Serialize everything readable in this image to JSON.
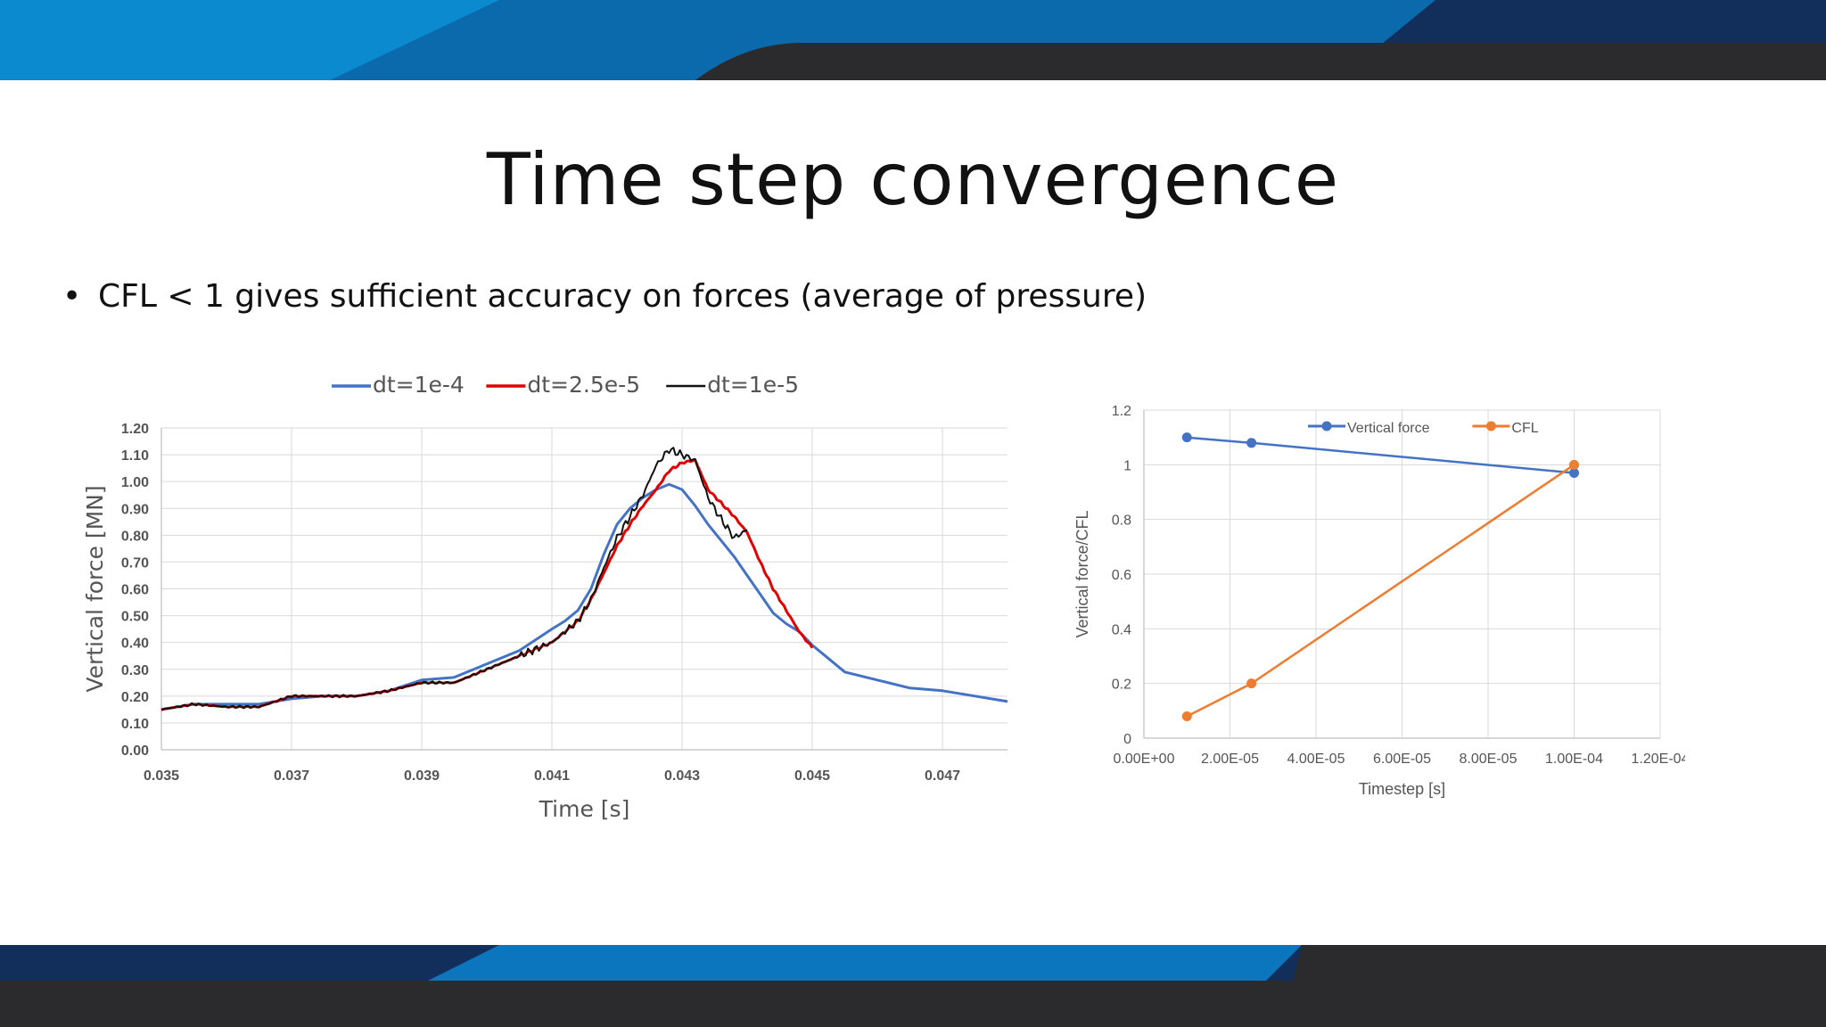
{
  "slide": {
    "title": "Time step convergence",
    "bullet": "CFL < 1 gives sufficient accuracy on forces (average of pressure)"
  },
  "colors": {
    "banner_blue_light": "#0b8ad0",
    "banner_blue_dark": "#122e5a",
    "banner_gray": "#2b2b2d",
    "series_blue": "#4472c4",
    "series_red": "#e00000",
    "series_black": "#111111",
    "series_orange": "#ed7d31"
  },
  "chart_data": [
    {
      "type": "line",
      "xlabel": "Time [s]",
      "ylabel": "Vertical force [MN]",
      "xlim": [
        0.035,
        0.048
      ],
      "ylim": [
        0,
        1.2
      ],
      "x_ticks": [
        "0.035",
        "0.037",
        "0.039",
        "0.041",
        "0.043",
        "0.045",
        "0.047"
      ],
      "y_ticks": [
        "0.00",
        "0.10",
        "0.20",
        "0.30",
        "0.40",
        "0.50",
        "0.60",
        "0.70",
        "0.80",
        "0.90",
        "1.00",
        "1.10",
        "1.20"
      ],
      "grid": true,
      "legend_position": "top",
      "series": [
        {
          "name": "dt=1e-4",
          "color": "#4472c4",
          "x": [
            0.035,
            0.0355,
            0.036,
            0.0365,
            0.037,
            0.0375,
            0.038,
            0.0385,
            0.039,
            0.0395,
            0.04,
            0.0405,
            0.041,
            0.0412,
            0.0414,
            0.0416,
            0.0418,
            0.042,
            0.0422,
            0.0424,
            0.0426,
            0.0428,
            0.043,
            0.0432,
            0.0434,
            0.0436,
            0.0438,
            0.044,
            0.0442,
            0.0444,
            0.0446,
            0.0448,
            0.045,
            0.0452,
            0.0455,
            0.046,
            0.0465,
            0.047,
            0.0475,
            0.048
          ],
          "y": [
            0.15,
            0.17,
            0.17,
            0.17,
            0.19,
            0.2,
            0.2,
            0.22,
            0.26,
            0.27,
            0.32,
            0.37,
            0.45,
            0.48,
            0.52,
            0.6,
            0.73,
            0.84,
            0.9,
            0.94,
            0.97,
            0.99,
            0.97,
            0.91,
            0.84,
            0.78,
            0.72,
            0.65,
            0.58,
            0.51,
            0.47,
            0.44,
            0.39,
            0.35,
            0.29,
            0.26,
            0.23,
            0.22,
            0.2,
            0.18
          ]
        },
        {
          "name": "dt=2.5e-5",
          "color": "#e00000",
          "x": [
            0.035,
            0.0355,
            0.036,
            0.0365,
            0.037,
            0.0375,
            0.038,
            0.0385,
            0.039,
            0.0395,
            0.04,
            0.0405,
            0.041,
            0.0412,
            0.0414,
            0.0416,
            0.0418,
            0.042,
            0.0422,
            0.0424,
            0.0426,
            0.0428,
            0.043,
            0.0432,
            0.0434,
            0.0436,
            0.0438,
            0.044,
            0.0442,
            0.0444,
            0.0446,
            0.0448,
            0.045
          ],
          "y": [
            0.15,
            0.17,
            0.16,
            0.16,
            0.2,
            0.2,
            0.2,
            0.22,
            0.25,
            0.25,
            0.3,
            0.35,
            0.4,
            0.44,
            0.48,
            0.56,
            0.66,
            0.76,
            0.84,
            0.91,
            0.97,
            1.04,
            1.07,
            1.08,
            0.97,
            0.92,
            0.87,
            0.81,
            0.7,
            0.6,
            0.52,
            0.44,
            0.38
          ]
        },
        {
          "name": "dt=1e-5",
          "color": "#111111",
          "x": [
            0.035,
            0.0355,
            0.036,
            0.0365,
            0.037,
            0.0375,
            0.038,
            0.0385,
            0.039,
            0.0395,
            0.04,
            0.0405,
            0.041,
            0.0412,
            0.0414,
            0.0416,
            0.0418,
            0.042,
            0.0422,
            0.0424,
            0.0426,
            0.0428,
            0.043,
            0.0432,
            0.0434,
            0.0436,
            0.0438,
            0.044
          ],
          "y": [
            0.15,
            0.17,
            0.16,
            0.16,
            0.2,
            0.2,
            0.2,
            0.22,
            0.25,
            0.25,
            0.3,
            0.35,
            0.4,
            0.44,
            0.48,
            0.56,
            0.68,
            0.79,
            0.87,
            0.95,
            1.06,
            1.12,
            1.1,
            1.08,
            0.94,
            0.86,
            0.79,
            0.82
          ]
        }
      ]
    },
    {
      "type": "line",
      "xlabel": "Timestep [s]",
      "ylabel": "Vertical force/CFL",
      "xlim": [
        0,
        0.00012
      ],
      "ylim": [
        0,
        1.2
      ],
      "x_ticks": [
        "0.00E+00",
        "2.00E-05",
        "4.00E-05",
        "6.00E-05",
        "8.00E-05",
        "1.00E-04",
        "1.20E-04"
      ],
      "y_ticks": [
        "0",
        "0.2",
        "0.4",
        "0.6",
        "0.8",
        "1",
        "1.2"
      ],
      "grid": true,
      "legend_position": "top-right",
      "series": [
        {
          "name": "Vertical force",
          "color": "#4472c4",
          "x": [
            1e-05,
            2.5e-05,
            0.0001
          ],
          "y": [
            1.1,
            1.08,
            0.97
          ]
        },
        {
          "name": "CFL",
          "color": "#ed7d31",
          "x": [
            1e-05,
            2.5e-05,
            0.0001
          ],
          "y": [
            0.08,
            0.2,
            1.0
          ]
        }
      ]
    }
  ]
}
